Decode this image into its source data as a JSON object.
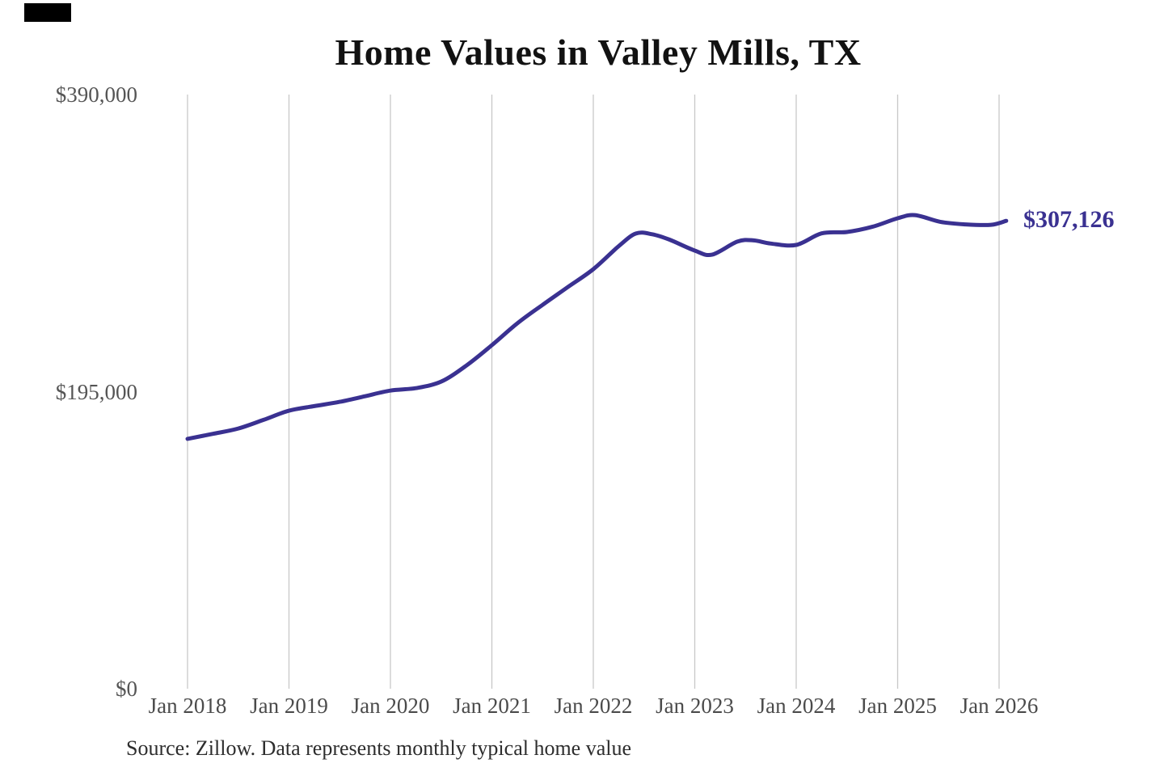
{
  "page": {
    "background": "#ffffff",
    "logo_block_color": "#000000"
  },
  "chart_data": {
    "type": "line",
    "title": "Home Values in Valley Mills, TX",
    "source_note": "Source: Zillow. Data represents monthly typical home value",
    "end_label": "$307,126",
    "end_value": 307126,
    "line_color": "#3a3191",
    "grid_color": "#c8c8c8",
    "grid": "vertical-only",
    "legend": "none",
    "x_range": [
      2018,
      2026
    ],
    "y_range": [
      0,
      390000
    ],
    "x_tick_labels": [
      "Jan 2018",
      "Jan 2019",
      "Jan 2020",
      "Jan 2021",
      "Jan 2022",
      "Jan 2023",
      "Jan 2024",
      "Jan 2025",
      "Jan 2026"
    ],
    "y_ticks": [
      {
        "label": "$390,000",
        "value": 390000
      },
      {
        "label": "$195,000",
        "value": 195000
      },
      {
        "label": "$0",
        "value": 0
      }
    ],
    "series": [
      {
        "name": "Monthly typical home value",
        "points": [
          {
            "x": 2018.0,
            "v": 164000
          },
          {
            "x": 2018.25,
            "v": 167300
          },
          {
            "x": 2018.5,
            "v": 170800
          },
          {
            "x": 2018.75,
            "v": 176500
          },
          {
            "x": 2019.0,
            "v": 182500
          },
          {
            "x": 2019.25,
            "v": 185500
          },
          {
            "x": 2019.5,
            "v": 188300
          },
          {
            "x": 2019.75,
            "v": 192000
          },
          {
            "x": 2020.0,
            "v": 195700
          },
          {
            "x": 2020.25,
            "v": 197300
          },
          {
            "x": 2020.5,
            "v": 201600
          },
          {
            "x": 2020.75,
            "v": 212200
          },
          {
            "x": 2021.0,
            "v": 225500
          },
          {
            "x": 2021.25,
            "v": 239800
          },
          {
            "x": 2021.5,
            "v": 252000
          },
          {
            "x": 2021.75,
            "v": 263700
          },
          {
            "x": 2022.0,
            "v": 275400
          },
          {
            "x": 2022.25,
            "v": 290500
          },
          {
            "x": 2022.42,
            "v": 298800
          },
          {
            "x": 2022.58,
            "v": 298300
          },
          {
            "x": 2022.75,
            "v": 294800
          },
          {
            "x": 2023.0,
            "v": 287600
          },
          {
            "x": 2023.17,
            "v": 284900
          },
          {
            "x": 2023.42,
            "v": 293500
          },
          {
            "x": 2023.58,
            "v": 294300
          },
          {
            "x": 2023.75,
            "v": 292200
          },
          {
            "x": 2024.0,
            "v": 291300
          },
          {
            "x": 2024.25,
            "v": 298900
          },
          {
            "x": 2024.5,
            "v": 299800
          },
          {
            "x": 2024.75,
            "v": 303200
          },
          {
            "x": 2025.0,
            "v": 308800
          },
          {
            "x": 2025.17,
            "v": 310900
          },
          {
            "x": 2025.42,
            "v": 306500
          },
          {
            "x": 2025.67,
            "v": 304800
          },
          {
            "x": 2025.92,
            "v": 304500
          },
          {
            "x": 2026.07,
            "v": 307126
          }
        ]
      }
    ]
  }
}
